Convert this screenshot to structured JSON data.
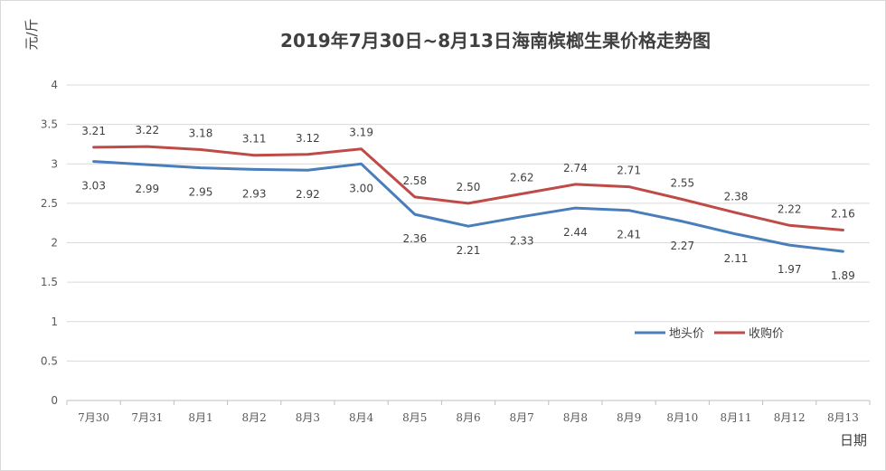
{
  "chart_data": {
    "type": "line",
    "title": "2019年7月30日~8月13日海南槟榔生果价格走势图",
    "xlabel": "日期",
    "ylabel": "元/斤",
    "ylim": [
      0,
      4
    ],
    "yticks": [
      "0",
      "0.5",
      "1",
      "1.5",
      "2",
      "2.5",
      "3",
      "3.5",
      "4"
    ],
    "grid": true,
    "legend_position": "right",
    "categories": [
      "7月30",
      "7月31",
      "8月1",
      "8月2",
      "8月3",
      "8月4",
      "8月5",
      "8月6",
      "8月7",
      "8月8",
      "8月9",
      "8月10",
      "8月11",
      "8月12",
      "8月13"
    ],
    "series": [
      {
        "name": "地头价",
        "color": "#4a7ebb",
        "values": [
          3.03,
          2.99,
          2.95,
          2.93,
          2.92,
          3.0,
          2.36,
          2.21,
          2.33,
          2.44,
          2.41,
          2.27,
          2.11,
          1.97,
          1.89
        ],
        "labels": [
          "3.03",
          "2.99",
          "2.95",
          "2.93",
          "2.92",
          "3.00",
          "2.36",
          "2.21",
          "2.33",
          "2.44",
          "2.41",
          "2.27",
          "2.11",
          "1.97",
          "1.89"
        ]
      },
      {
        "name": "收购价",
        "color": "#be4b48",
        "values": [
          3.21,
          3.22,
          3.18,
          3.11,
          3.12,
          3.19,
          2.58,
          2.5,
          2.62,
          2.74,
          2.71,
          2.55,
          2.38,
          2.22,
          2.16
        ],
        "labels": [
          "3.21",
          "3.22",
          "3.18",
          "3.11",
          "3.12",
          "3.19",
          "2.58",
          "2.50",
          "2.62",
          "2.74",
          "2.71",
          "2.55",
          "2.38",
          "2.22",
          "2.16"
        ]
      }
    ]
  }
}
